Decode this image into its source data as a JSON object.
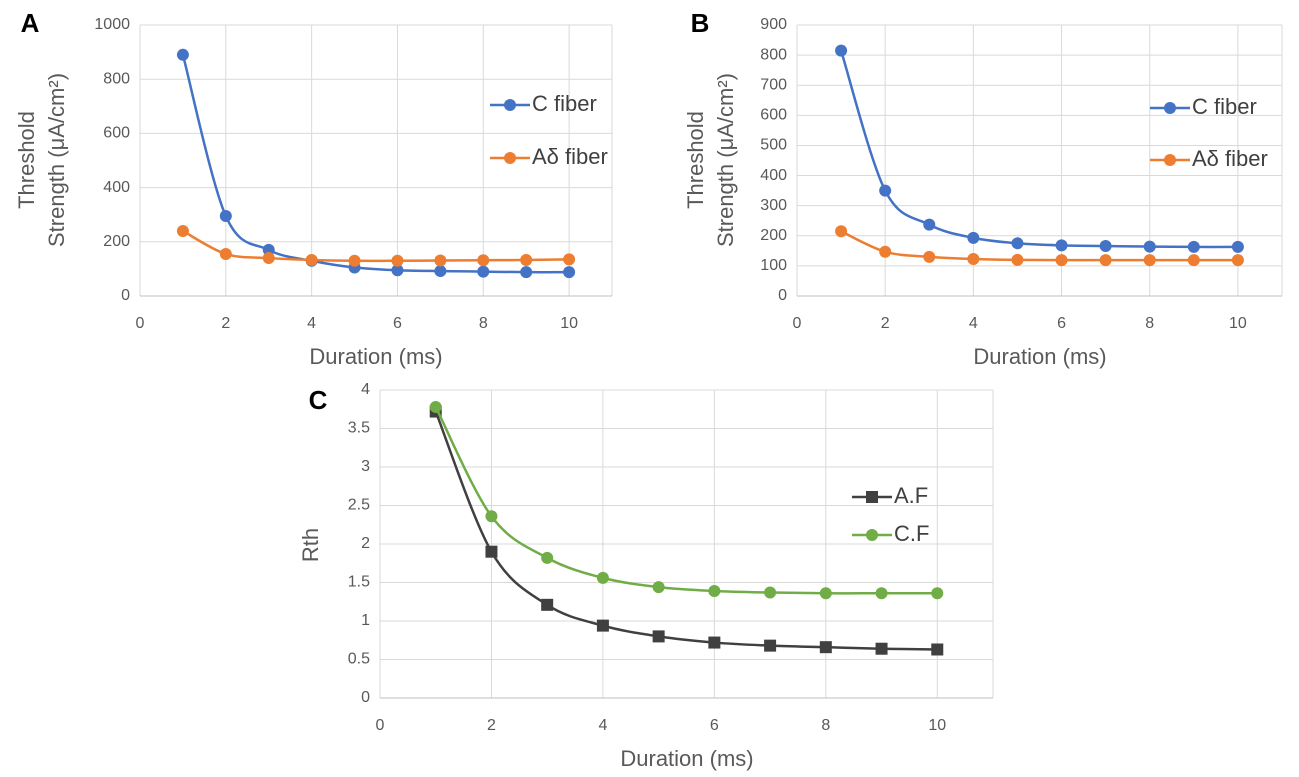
{
  "chart_data": [
    {
      "type": "line",
      "panel_label": "A",
      "xlabel": "Duration (ms)",
      "ylabel": [
        "Threshold",
        "Strength (μA/cm²)"
      ],
      "x": [
        1,
        2,
        3,
        4,
        5,
        6,
        7,
        8,
        9,
        10
      ],
      "series": [
        {
          "name": "C fiber",
          "color": "#4472c4",
          "marker": "circle",
          "values": [
            890,
            295,
            170,
            130,
            105,
            95,
            92,
            90,
            88,
            88
          ]
        },
        {
          "name": "Aδ fiber",
          "color": "#ed7d31",
          "marker": "circle",
          "values": [
            240,
            155,
            140,
            133,
            130,
            130,
            131,
            132,
            133,
            135
          ]
        }
      ],
      "xlim": [
        0,
        11
      ],
      "xticks": [
        0,
        2,
        4,
        6,
        8,
        10
      ],
      "ylim": [
        0,
        1000
      ],
      "yticks": [
        0,
        200,
        400,
        600,
        800,
        1000
      ],
      "grid": true,
      "smooth": true
    },
    {
      "type": "line",
      "panel_label": "B",
      "xlabel": "Duration (ms)",
      "ylabel": [
        "Threshold",
        "Strength (μA/cm²)"
      ],
      "x": [
        1,
        2,
        3,
        4,
        5,
        6,
        7,
        8,
        9,
        10
      ],
      "series": [
        {
          "name": "C fiber",
          "color": "#4472c4",
          "marker": "circle",
          "values": [
            815,
            350,
            237,
            193,
            175,
            168,
            166,
            164,
            163,
            163
          ]
        },
        {
          "name": "Aδ fiber",
          "color": "#ed7d31",
          "marker": "circle",
          "values": [
            215,
            147,
            130,
            123,
            120,
            119,
            119,
            119,
            119,
            119
          ]
        }
      ],
      "xlim": [
        0,
        11
      ],
      "xticks": [
        0,
        2,
        4,
        6,
        8,
        10
      ],
      "ylim": [
        0,
        900
      ],
      "yticks": [
        0,
        100,
        200,
        300,
        400,
        500,
        600,
        700,
        800,
        900
      ],
      "grid": true,
      "smooth": true
    },
    {
      "type": "line",
      "panel_label": "C",
      "xlabel": "Duration (ms)",
      "ylabel": [
        "Rth"
      ],
      "x": [
        1,
        2,
        3,
        4,
        5,
        6,
        7,
        8,
        9,
        10
      ],
      "series": [
        {
          "name": "A.F",
          "color": "#404040",
          "marker": "square",
          "values": [
            3.72,
            1.9,
            1.21,
            0.94,
            0.8,
            0.72,
            0.68,
            0.66,
            0.64,
            0.63
          ]
        },
        {
          "name": "C.F",
          "color": "#70ad47",
          "marker": "circle",
          "values": [
            3.78,
            2.36,
            1.82,
            1.56,
            1.44,
            1.39,
            1.37,
            1.36,
            1.36,
            1.36
          ]
        }
      ],
      "xlim": [
        0,
        11
      ],
      "xticks": [
        0,
        2,
        4,
        6,
        8,
        10
      ],
      "ylim": [
        0,
        4
      ],
      "yticks": [
        0,
        0.5,
        1,
        1.5,
        2,
        2.5,
        3,
        3.5,
        4
      ],
      "grid": true,
      "smooth": true
    }
  ]
}
